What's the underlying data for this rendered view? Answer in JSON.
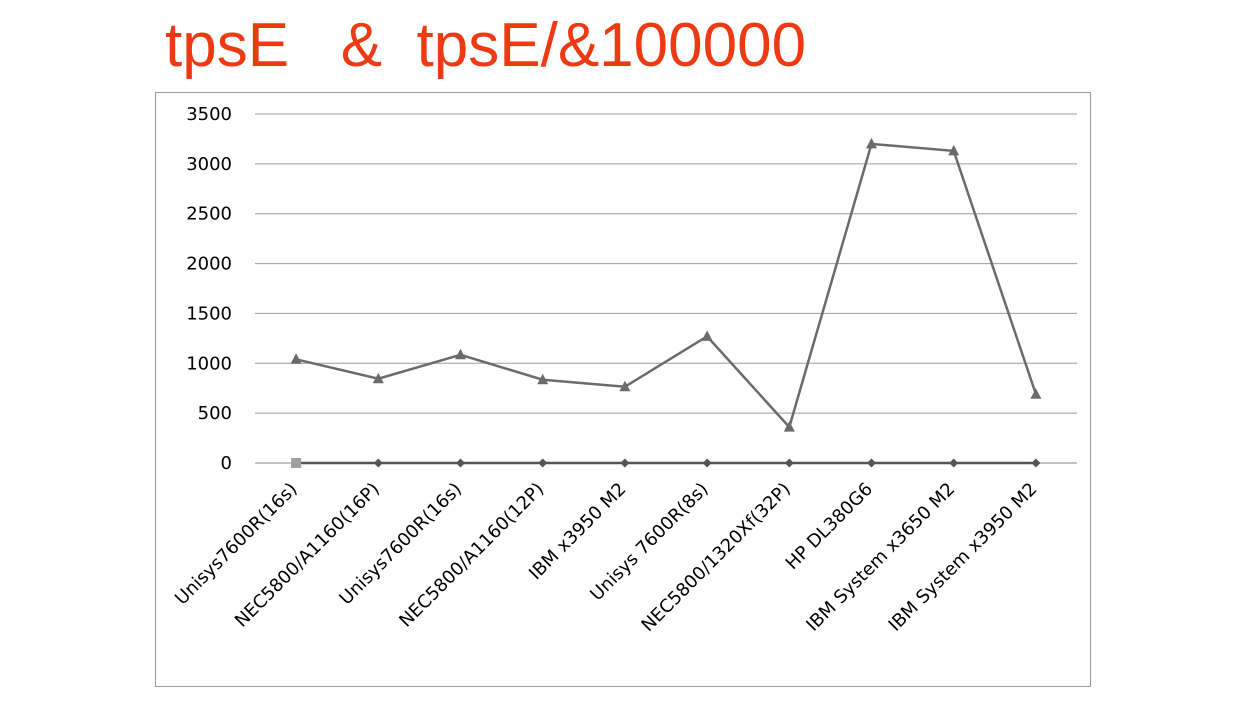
{
  "title": "tpsE   &  tpsE/&100000",
  "chart_data": {
    "type": "line",
    "categories": [
      "Unisys7600R(16s)",
      "NEC5800/A1160(16P)",
      "Unisys7600R(16s)",
      "NEC5800/A1160(12P)",
      "IBM x3950 M2",
      "Unisys 7600R(8s)",
      "NEC5800/1320Xf(32P)",
      "HP DL380G6",
      "IBM System x3650 M2",
      "IBM System x3950 M2"
    ],
    "y_ticks": [
      "0",
      "500",
      "1000",
      "1500",
      "2000",
      "2500",
      "3000",
      "3500"
    ],
    "ylim": [
      0,
      3500
    ],
    "grid": true,
    "series": [
      {
        "marker": "triangle",
        "color": "#6b6b6b",
        "values": [
          1040,
          845,
          1085,
          835,
          765,
          1270,
          360,
          3200,
          3130,
          690
        ]
      },
      {
        "marker": "diamond",
        "color": "#555555",
        "values": [
          0,
          0,
          0,
          0,
          0,
          0,
          0,
          0,
          0,
          0
        ]
      },
      {
        "marker": "square",
        "color": "#a0a0a0",
        "values": [
          0,
          null,
          null,
          null,
          null,
          null,
          null,
          null,
          null,
          null
        ]
      }
    ]
  }
}
